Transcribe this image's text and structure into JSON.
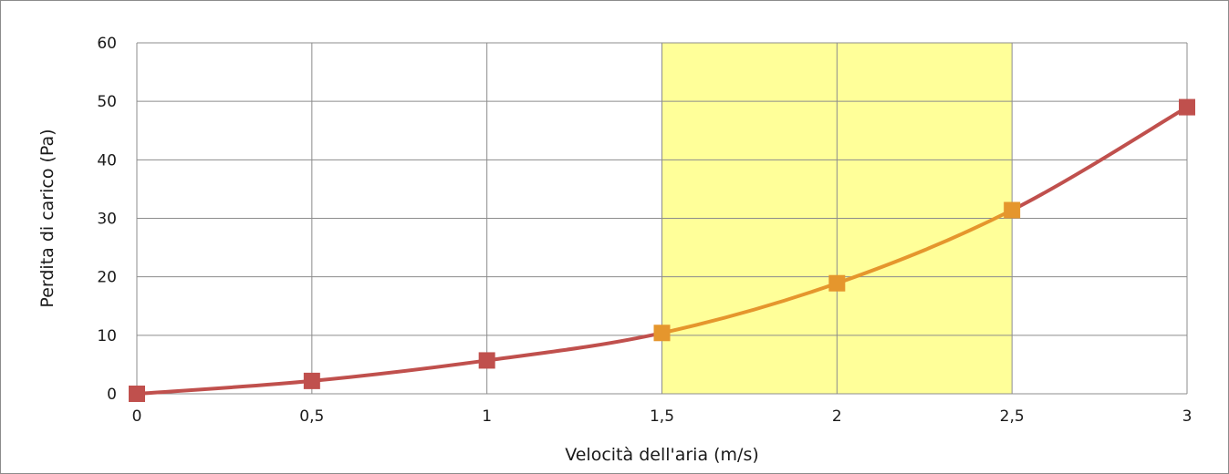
{
  "chart_data": {
    "type": "line",
    "xlabel": "Velocità dell'aria (m/s)",
    "ylabel": "Perdita di carico (Pa)",
    "xlim": [
      0,
      3
    ],
    "ylim": [
      0,
      60
    ],
    "x_ticks": [
      0,
      0.5,
      1,
      1.5,
      2,
      2.5,
      3
    ],
    "x_tick_labels": [
      "0",
      "0,5",
      "1",
      "1,5",
      "2",
      "2,5",
      "3"
    ],
    "y_ticks": [
      0,
      10,
      20,
      30,
      40,
      50,
      60
    ],
    "y_tick_labels": [
      "0",
      "10",
      "20",
      "30",
      "40",
      "50",
      "60"
    ],
    "grid": true,
    "legend": "none",
    "x": [
      0,
      0.5,
      1,
      1.5,
      2,
      2.5,
      3
    ],
    "values": [
      0,
      2.2,
      5.7,
      10.4,
      18.9,
      31.4,
      49.0
    ],
    "highlight_range": [
      1.5,
      2.5
    ],
    "colors": {
      "line": "#c0504d",
      "highlight_line": "#e5962d",
      "highlight_fill": "#ffff99",
      "grid": "#8c8c8c"
    }
  }
}
